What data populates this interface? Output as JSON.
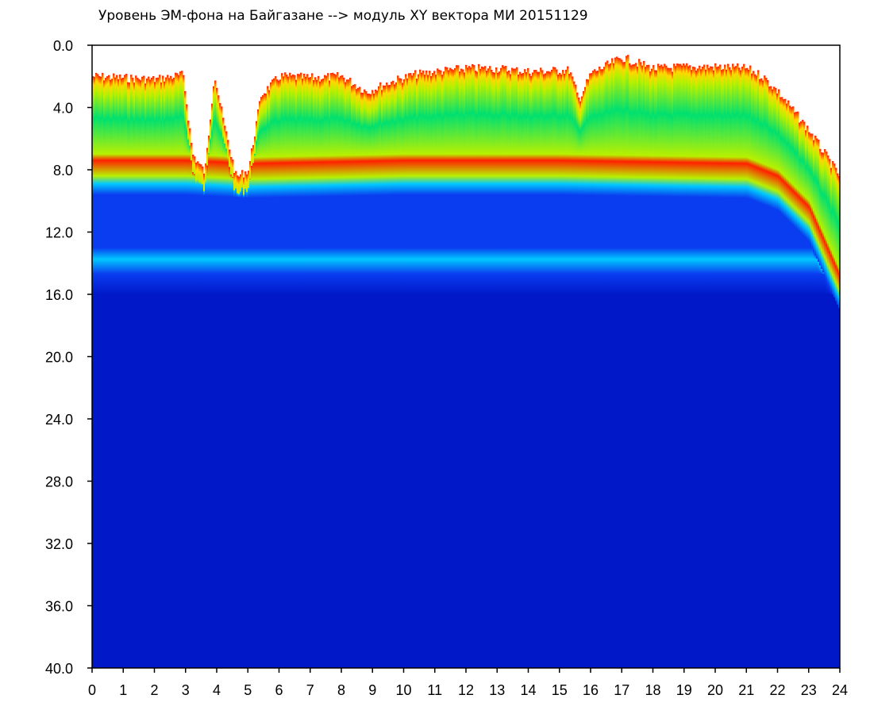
{
  "chart_data": {
    "type": "heatmap",
    "title": "Уровень ЭМ-фона на Байгазане  --> модуль XY вектора МИ  20151129",
    "xlabel": "",
    "ylabel": "",
    "x_range": [
      0,
      24
    ],
    "y_range": [
      0,
      40
    ],
    "y_inverted": true,
    "x_ticks": [
      "0",
      "1",
      "2",
      "3",
      "4",
      "5",
      "6",
      "7",
      "8",
      "9",
      "10",
      "11",
      "12",
      "13",
      "14",
      "15",
      "16",
      "17",
      "18",
      "19",
      "20",
      "21",
      "22",
      "23",
      "24"
    ],
    "y_ticks": [
      "0.0",
      "4.0",
      "8.0",
      "12.0",
      "16.0",
      "20.0",
      "24.0",
      "28.0",
      "32.0",
      "36.0",
      "40.0"
    ],
    "colorscale": [
      "#0018c8",
      "#0a3cf0",
      "#00c8ff",
      "#00e070",
      "#b8f000",
      "#ffd800",
      "#ff2000"
    ],
    "background_color": "#ffffff",
    "noise_top_by_hour": [
      {
        "x": 0.0,
        "y": 2.0
      },
      {
        "x": 1.0,
        "y": 2.1
      },
      {
        "x": 2.0,
        "y": 2.2
      },
      {
        "x": 2.9,
        "y": 1.9
      },
      {
        "x": 3.2,
        "y": 7.0
      },
      {
        "x": 3.6,
        "y": 8.2
      },
      {
        "x": 3.9,
        "y": 1.8
      },
      {
        "x": 4.2,
        "y": 5.0
      },
      {
        "x": 4.6,
        "y": 8.5
      },
      {
        "x": 5.0,
        "y": 8.0
      },
      {
        "x": 5.4,
        "y": 3.2
      },
      {
        "x": 6.0,
        "y": 2.0
      },
      {
        "x": 7.0,
        "y": 2.1
      },
      {
        "x": 8.0,
        "y": 2.0
      },
      {
        "x": 8.8,
        "y": 3.0
      },
      {
        "x": 9.5,
        "y": 2.4
      },
      {
        "x": 10.3,
        "y": 1.9
      },
      {
        "x": 11.0,
        "y": 1.7
      },
      {
        "x": 12.0,
        "y": 1.5
      },
      {
        "x": 13.0,
        "y": 1.5
      },
      {
        "x": 14.0,
        "y": 1.7
      },
      {
        "x": 15.3,
        "y": 1.6
      },
      {
        "x": 15.6,
        "y": 3.5
      },
      {
        "x": 16.0,
        "y": 1.8
      },
      {
        "x": 17.0,
        "y": 0.8
      },
      {
        "x": 18.0,
        "y": 1.5
      },
      {
        "x": 19.0,
        "y": 1.4
      },
      {
        "x": 20.0,
        "y": 1.4
      },
      {
        "x": 21.0,
        "y": 1.5
      },
      {
        "x": 21.5,
        "y": 2.0
      },
      {
        "x": 22.0,
        "y": 3.0
      },
      {
        "x": 23.0,
        "y": 5.5
      },
      {
        "x": 24.0,
        "y": 8.5
      }
    ],
    "noise_high_band_by_hour": [
      {
        "x": 0.0,
        "y": 8.0
      },
      {
        "x": 3.0,
        "y": 8.0
      },
      {
        "x": 5.0,
        "y": 8.2
      },
      {
        "x": 10.0,
        "y": 8.0
      },
      {
        "x": 15.0,
        "y": 8.0
      },
      {
        "x": 21.0,
        "y": 8.2
      },
      {
        "x": 22.0,
        "y": 9.0
      },
      {
        "x": 23.0,
        "y": 11.0
      },
      {
        "x": 24.0,
        "y": 15.5
      }
    ],
    "cyan_band_y": [
      13.0,
      14.5
    ]
  }
}
